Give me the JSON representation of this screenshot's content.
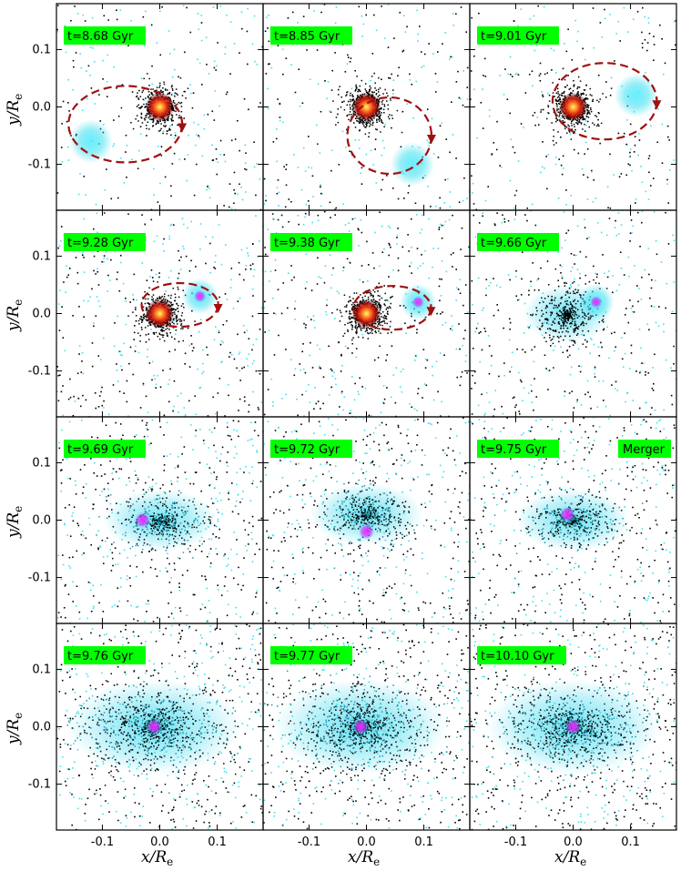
{
  "figure": {
    "xlabel": "x/R",
    "xlabel_sub": "e",
    "ylabel": "y/R",
    "ylabel_sub": "e",
    "xticks": [
      "-0.1",
      "0.0",
      "0.1"
    ],
    "yticks": [
      "0.1",
      "0.0",
      "-0.1"
    ],
    "label_bg_color": "#00ff00",
    "orbit_color": "#a01010",
    "gas_color": "#40e0f0",
    "star_color": "#000000"
  },
  "chart_data": {
    "type": "scatter",
    "xlim": [
      -0.18,
      0.18
    ],
    "ylim": [
      -0.18,
      0.18
    ],
    "panels": [
      {
        "time": "t=8.68 Gyr",
        "note": "",
        "primary": [
          0.0,
          0.0
        ],
        "secondary": [
          -0.12,
          -0.06
        ],
        "orbit": true
      },
      {
        "time": "t=8.85 Gyr",
        "note": "",
        "primary": [
          0.0,
          0.0
        ],
        "secondary": [
          0.08,
          -0.1
        ],
        "orbit": true
      },
      {
        "time": "t=9.01 Gyr",
        "note": "",
        "primary": [
          0.0,
          0.0
        ],
        "secondary": [
          0.11,
          0.02
        ],
        "orbit": true
      },
      {
        "time": "t=9.28 Gyr",
        "note": "",
        "primary": [
          0.0,
          0.0
        ],
        "secondary": [
          0.07,
          0.03
        ],
        "orbit": true
      },
      {
        "time": "t=9.38 Gyr",
        "note": "",
        "primary": [
          0.0,
          0.0
        ],
        "secondary": [
          0.09,
          0.02
        ],
        "orbit": true
      },
      {
        "time": "t=9.66 Gyr",
        "note": "",
        "primary": [
          -0.01,
          0.0
        ],
        "secondary": [
          0.04,
          0.02
        ],
        "orbit": false
      },
      {
        "time": "t=9.69 Gyr",
        "note": "",
        "primary": [
          0.0,
          0.0
        ],
        "secondary": [
          -0.03,
          0.0
        ],
        "orbit": false
      },
      {
        "time": "t=9.72 Gyr",
        "note": "",
        "primary": [
          0.0,
          0.01
        ],
        "secondary": [
          0.0,
          -0.02
        ],
        "orbit": false
      },
      {
        "time": "t=9.75 Gyr",
        "note": "Merger",
        "primary": [
          0.0,
          0.0
        ],
        "secondary": [
          -0.01,
          0.01
        ],
        "orbit": false
      },
      {
        "time": "t=9.76 Gyr",
        "note": "",
        "primary": [
          -0.01,
          0.0
        ],
        "secondary": [
          -0.01,
          0.0
        ],
        "orbit": false
      },
      {
        "time": "t=9.77 Gyr",
        "note": "",
        "primary": [
          -0.01,
          0.0
        ],
        "secondary": [
          -0.01,
          0.0
        ],
        "orbit": false
      },
      {
        "time": "t=10.10 Gyr",
        "note": "",
        "primary": [
          0.0,
          0.0
        ],
        "secondary": [
          0.0,
          0.0
        ],
        "orbit": false
      }
    ]
  }
}
